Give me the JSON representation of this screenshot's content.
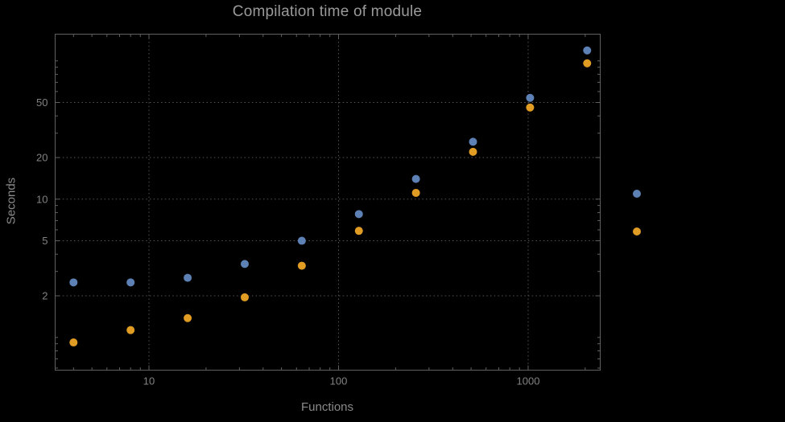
{
  "chart_data": {
    "type": "scatter",
    "title": "Compilation time of module",
    "xlabel": "Functions",
    "ylabel": "Seconds",
    "x_scale": "log",
    "y_scale": "log",
    "xlim": [
      3.2,
      2400
    ],
    "ylim": [
      0.58,
      156
    ],
    "x_ticks": [
      10,
      100,
      1000
    ],
    "x_tick_labels": [
      "10",
      "100",
      "1000"
    ],
    "y_ticks": [
      2,
      5,
      10,
      20,
      50
    ],
    "y_tick_labels": [
      "2",
      "5",
      "10",
      "20",
      "50"
    ],
    "grid": "dotted",
    "legend_position": "right-outside",
    "x": [
      4,
      8,
      16,
      32,
      64,
      128,
      256,
      512,
      1024,
      2048
    ],
    "series": [
      {
        "name": "series-blue",
        "color": "#5e81b5",
        "values": [
          2.5,
          2.5,
          2.7,
          3.4,
          5.0,
          7.8,
          14,
          26,
          54,
          119
        ]
      },
      {
        "name": "series-orange",
        "color": "#e19c24",
        "values": [
          0.92,
          1.13,
          1.38,
          1.95,
          3.3,
          5.9,
          11.1,
          22,
          46,
          96
        ]
      }
    ],
    "legend_markers": [
      {
        "series": "series-blue",
        "color": "#5e81b5"
      },
      {
        "series": "series-orange",
        "color": "#e19c24"
      }
    ]
  },
  "style": {
    "background": "#000000",
    "frame_color": "#606060",
    "grid_color": "#545454",
    "title_color": "#9a9a9a",
    "axis_label_color": "#8a8a8a",
    "tick_label_color": "#828282"
  }
}
